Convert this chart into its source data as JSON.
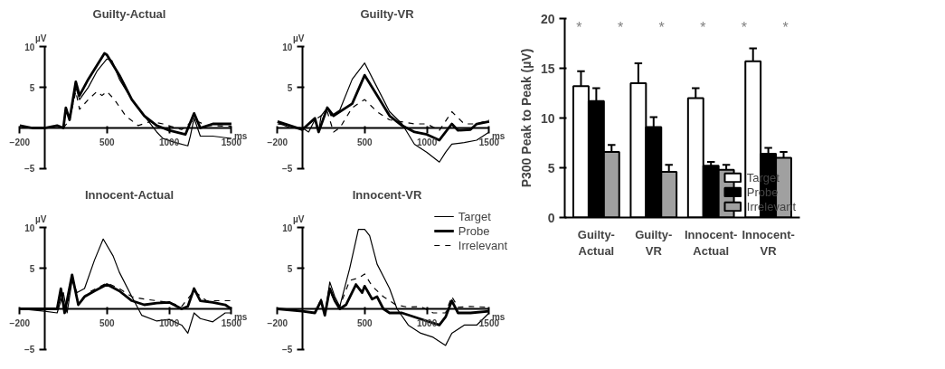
{
  "chart_data": [
    {
      "type": "line",
      "title": "Guilty-Actual",
      "xlabel": "ms",
      "ylabel": "µV",
      "xlim": [
        -200,
        1500
      ],
      "ylim": [
        -5,
        10
      ],
      "xticks": [
        -200,
        500,
        1000,
        1500
      ],
      "yticks": [
        -5,
        5,
        10
      ],
      "series": [
        {
          "color": "#000000",
          "line_style": "solid",
          "x": [
            -200,
            -100,
            0,
            100,
            150,
            170,
            200,
            250,
            280,
            350,
            420,
            500,
            540,
            600,
            700,
            800,
            900,
            950,
            1050,
            1150,
            1170,
            1200,
            1250,
            1350,
            1450,
            1500
          ],
          "values": [
            0,
            0,
            0,
            0,
            0,
            2.5,
            1,
            5,
            3.5,
            5,
            7,
            8.5,
            8.3,
            6,
            3.5,
            1.5,
            -0.5,
            -1.3,
            -1.8,
            -2.2,
            -1,
            1.2,
            -1,
            -1,
            -1.2,
            -1.3
          ]
        },
        {
          "color": "#000000",
          "line_style": "solid",
          "x": [
            -200,
            -100,
            0,
            100,
            150,
            170,
            200,
            250,
            280,
            350,
            480,
            500,
            600,
            700,
            800,
            900,
            1000,
            1130,
            1200,
            1250,
            1350,
            1500
          ],
          "values": [
            0.3,
            0,
            0,
            0.3,
            0,
            2.5,
            1,
            5.7,
            4,
            6,
            9.2,
            9,
            6.5,
            3.5,
            1.5,
            0.3,
            -0.3,
            -0.8,
            1.8,
            0,
            0.5,
            0.5
          ]
        },
        {
          "color": "#000000",
          "line_style": "dashed",
          "x": [
            -200,
            0,
            150,
            200,
            250,
            280,
            350,
            420,
            460,
            500,
            560,
            650,
            750,
            850,
            950,
            1100,
            1200,
            1300,
            1500
          ],
          "values": [
            0,
            0,
            0,
            1,
            4.5,
            2.3,
            3.5,
            4.5,
            4,
            4.5,
            3.5,
            1.5,
            0.3,
            0.8,
            0.5,
            -0.2,
            1,
            0.3,
            0.2
          ]
        }
      ]
    },
    {
      "type": "line",
      "title": "Guilty-VR",
      "xlabel": "ms",
      "ylabel": "µV",
      "xlim": [
        -200,
        1500
      ],
      "ylim": [
        -5,
        10
      ],
      "xticks": [
        -200,
        500,
        1000,
        1500
      ],
      "yticks": [
        -5,
        5,
        10
      ],
      "series": [
        {
          "color": "#000000",
          "line_style": "solid",
          "x": [
            -200,
            -100,
            0,
            50,
            100,
            130,
            150,
            200,
            230,
            300,
            400,
            500,
            600,
            700,
            800,
            900,
            1000,
            1100,
            1150,
            1200,
            1300,
            1400,
            1500
          ],
          "values": [
            0.7,
            0,
            0,
            -0.5,
            1,
            -0.5,
            1.5,
            2.5,
            1.5,
            2.2,
            6,
            8,
            5,
            2,
            0.5,
            -2,
            -3,
            -4.2,
            -3,
            -2,
            -1.8,
            -1.5,
            -0.5
          ]
        },
        {
          "color": "#000000",
          "line_style": "solid",
          "x": [
            -200,
            0,
            100,
            130,
            200,
            250,
            400,
            500,
            600,
            700,
            800,
            900,
            1000,
            1100,
            1200,
            1250,
            1350,
            1400,
            1500
          ],
          "values": [
            0.8,
            -0.2,
            1.2,
            -0.5,
            2.5,
            1.5,
            3,
            6.5,
            4,
            1.5,
            0.3,
            -0.5,
            -0.8,
            -1.5,
            0.5,
            -0.3,
            -0.2,
            0.5,
            0.8
          ]
        },
        {
          "color": "#000000",
          "line_style": "dashed",
          "x": [
            -200,
            0,
            200,
            250,
            300,
            400,
            500,
            600,
            700,
            900,
            1000,
            1100,
            1200,
            1300,
            1400,
            1500
          ],
          "values": [
            0.5,
            0,
            2,
            -0.5,
            0,
            2.5,
            3.5,
            2,
            1,
            0.5,
            0.5,
            -0.3,
            2,
            0.5,
            0.5,
            1
          ]
        }
      ]
    },
    {
      "type": "line",
      "title": "Innocent-Actual",
      "xlabel": "ms",
      "ylabel": "µV",
      "xlim": [
        -200,
        1500
      ],
      "ylim": [
        -5,
        10
      ],
      "xticks": [
        -200,
        500,
        1000,
        1500
      ],
      "yticks": [
        -5,
        5,
        10
      ],
      "series": [
        {
          "color": "#000000",
          "line_style": "solid",
          "x": [
            -200,
            0,
            100,
            150,
            180,
            220,
            260,
            320,
            400,
            470,
            550,
            600,
            700,
            780,
            900,
            1000,
            1100,
            1150,
            1200,
            1250,
            1350,
            1450,
            1500
          ],
          "values": [
            0,
            -0.3,
            -0.5,
            2,
            -0.5,
            3.5,
            2,
            2.5,
            6,
            8.6,
            6.5,
            4.5,
            1.5,
            -0.8,
            -1.5,
            -1.3,
            -2,
            -3,
            -0.5,
            -1.2,
            -1.6,
            -0.5,
            -0.5
          ]
        },
        {
          "color": "#000000",
          "line_style": "solid",
          "x": [
            -200,
            100,
            130,
            160,
            220,
            270,
            320,
            400,
            500,
            600,
            700,
            800,
            900,
            1000,
            1100,
            1150,
            1200,
            1250,
            1350,
            1450,
            1500
          ],
          "values": [
            0,
            0,
            2.5,
            -0.5,
            4.2,
            0.5,
            1.5,
            2.2,
            3,
            2.2,
            1,
            0.5,
            0.7,
            0.8,
            0,
            0.3,
            2.5,
            1,
            0.8,
            0.5,
            0
          ]
        },
        {
          "color": "#000000",
          "line_style": "dashed",
          "x": [
            -200,
            100,
            140,
            170,
            220,
            270,
            350,
            500,
            600,
            700,
            800,
            900,
            1000,
            1100,
            1200,
            1300,
            1500
          ],
          "values": [
            0,
            0,
            2,
            -0.5,
            3.8,
            0.8,
            2,
            3.2,
            2.5,
            1.5,
            1.2,
            1,
            0.8,
            0.3,
            2.2,
            1,
            1
          ]
        }
      ]
    },
    {
      "type": "line",
      "title": "Innocent-VR",
      "xlabel": "ms",
      "ylabel": "µV",
      "xlim": [
        -200,
        1500
      ],
      "ylim": [
        -5,
        10
      ],
      "xticks": [
        -200,
        500,
        1000,
        1500
      ],
      "yticks": [
        -5,
        5,
        10
      ],
      "legend": "top right",
      "series": [
        {
          "name": "Target",
          "color": "#000000",
          "line_style": "solid",
          "x": [
            -200,
            0,
            100,
            150,
            180,
            220,
            260,
            300,
            380,
            450,
            500,
            540,
            600,
            650,
            700,
            760,
            850,
            950,
            1050,
            1150,
            1200,
            1300,
            1400,
            1500
          ],
          "values": [
            0,
            -0.3,
            -0.5,
            1.2,
            -0.8,
            3.3,
            1.5,
            0.3,
            5,
            9.8,
            9.8,
            9,
            5.5,
            4,
            2.5,
            0,
            -2,
            -3,
            -3.5,
            -4.5,
            -3,
            -2,
            -2,
            -0.5
          ]
        },
        {
          "name": "Probe",
          "color": "#000000",
          "line_style": "solid",
          "x": [
            -200,
            0,
            100,
            150,
            180,
            220,
            260,
            300,
            350,
            430,
            480,
            500,
            560,
            600,
            650,
            700,
            800,
            900,
            1000,
            1100,
            1150,
            1200,
            1250,
            1350,
            1500
          ],
          "values": [
            0,
            -0.3,
            -0.5,
            1,
            -0.8,
            2.5,
            1,
            0,
            0.5,
            3,
            2,
            2.8,
            1.2,
            1.5,
            0,
            -0.5,
            -0.5,
            -1,
            -1.5,
            -2,
            -1,
            1,
            -0.5,
            -0.5,
            -0.3
          ]
        },
        {
          "name": "Irrelevant",
          "color": "#000000",
          "line_style": "dashed",
          "x": [
            -200,
            100,
            150,
            180,
            220,
            260,
            300,
            380,
            450,
            500,
            560,
            650,
            750,
            850,
            950,
            1050,
            1150,
            1200,
            1250,
            1350,
            1500
          ],
          "values": [
            0,
            0,
            1,
            -0.5,
            2.2,
            1,
            0.3,
            3.5,
            3.8,
            4.3,
            2.8,
            1.5,
            0.5,
            0.2,
            0.3,
            -0.5,
            -0.5,
            1.5,
            0.2,
            0.3,
            0.2
          ]
        }
      ]
    },
    {
      "type": "bar",
      "ylabel": "P300 Peak to Peak (µV)",
      "categories": [
        "Guilty-\nActual",
        "Guilty-\nVR",
        "Innocent-\nActual",
        "Innocent-\nVR"
      ],
      "ylim": [
        0,
        20
      ],
      "yticks": [
        0,
        5,
        10,
        15,
        20
      ],
      "legend": "bottom right",
      "series": [
        {
          "name": "Target",
          "color": "#ffffff",
          "values": [
            13.2,
            13.5,
            12.0,
            15.7
          ],
          "errors": [
            [
              13.2,
              14.7
            ],
            [
              13.5,
              15.5
            ],
            [
              12.0,
              13.0
            ],
            [
              15.7,
              17.0
            ]
          ]
        },
        {
          "name": "Probe",
          "color": "#000000",
          "values": [
            11.7,
            9.1,
            5.2,
            6.4
          ],
          "errors": [
            [
              11.7,
              13.0
            ],
            [
              9.1,
              10.1
            ],
            [
              5.2,
              5.6
            ],
            [
              6.4,
              7.0
            ]
          ]
        },
        {
          "name": "Irrelevant",
          "color": "#a0a0a0",
          "values": [
            6.6,
            4.6,
            4.8,
            6.0
          ],
          "errors": [
            [
              6.6,
              7.3
            ],
            [
              4.6,
              5.3
            ],
            [
              4.8,
              5.3
            ],
            [
              6.0,
              6.6
            ]
          ]
        }
      ],
      "annotations": [
        "*",
        "*",
        "*",
        "*",
        "*",
        "*"
      ]
    }
  ]
}
